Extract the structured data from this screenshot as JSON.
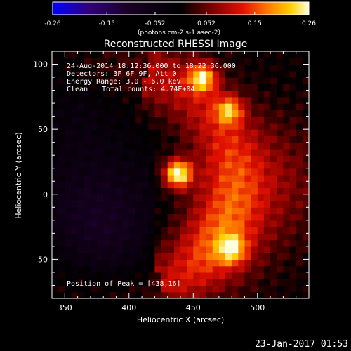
{
  "chart_data": {
    "type": "heatmap",
    "title": "Reconstructed RHESSI Image",
    "xlabel": "Heliocentric X (arcsec)",
    "ylabel": "Heliocentric Y (arcsec)",
    "xlim": [
      340,
      540
    ],
    "ylim": [
      -80,
      110
    ],
    "xticks": [
      350,
      400,
      450,
      500
    ],
    "yticks": [
      100,
      50,
      0,
      -50
    ],
    "colorbar": {
      "range": [
        -0.26,
        0.26
      ],
      "ticks": [
        "-0.26",
        "-0.15",
        "-0.052",
        "0.052",
        "0.15",
        "0.26"
      ],
      "unit_label": "(photons cm-2 s-1 asec-2)",
      "colormap": [
        "#0000ff",
        "#30007a",
        "#180022",
        "#000000",
        "#7a0000",
        "#e01000",
        "#ff7a00",
        "#ffd000",
        "#ffffe0"
      ]
    },
    "sources": [
      {
        "x": 438,
        "y": 16,
        "peak": 0.26
      },
      {
        "x": 457,
        "y": 90,
        "peak": 0.2
      },
      {
        "x": 478,
        "y": 65,
        "peak": 0.15
      },
      {
        "x": 480,
        "y": -42,
        "peak": 0.15
      }
    ],
    "annotations": {
      "time": "24-Aug-2014 18:12:36.000 to 18:22:36.000",
      "detectors": "Detectors: 3F 6F 9F, Att 0",
      "energy": "Energy Range: 3.0 - 6.0 keV",
      "clean": "Clean",
      "counts": "Total counts: 4.74E+04",
      "peak": "Position of Peak = [438,16]"
    },
    "date_stamp": "23-Jan-2017 01:53"
  }
}
